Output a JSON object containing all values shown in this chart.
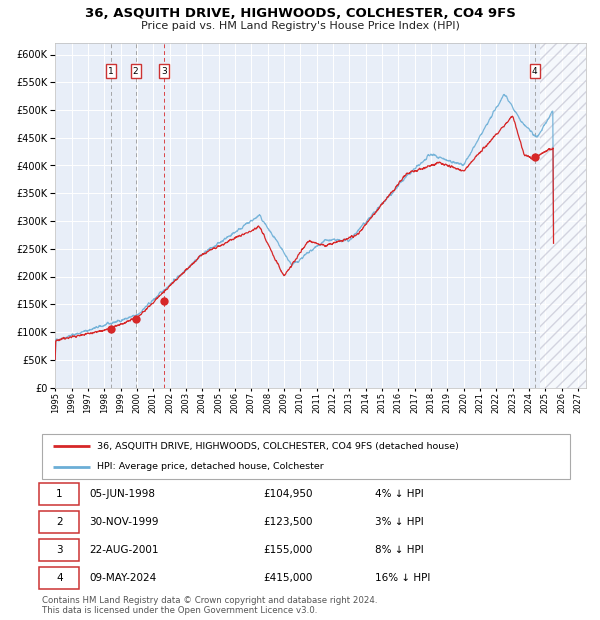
{
  "title": "36, ASQUITH DRIVE, HIGHWOODS, COLCHESTER, CO4 9FS",
  "subtitle": "Price paid vs. HM Land Registry's House Price Index (HPI)",
  "legend_entries": [
    "36, ASQUITH DRIVE, HIGHWOODS, COLCHESTER, CO4 9FS (detached house)",
    "HPI: Average price, detached house, Colchester"
  ],
  "table_rows": [
    {
      "num": "1",
      "date": "05-JUN-1998",
      "price": "£104,950",
      "hpi": "4% ↓ HPI"
    },
    {
      "num": "2",
      "date": "30-NOV-1999",
      "price": "£123,500",
      "hpi": "3% ↓ HPI"
    },
    {
      "num": "3",
      "date": "22-AUG-2001",
      "price": "£155,000",
      "hpi": "8% ↓ HPI"
    },
    {
      "num": "4",
      "date": "09-MAY-2024",
      "price": "£415,000",
      "hpi": "16% ↓ HPI"
    }
  ],
  "sale_dates_decimal": [
    1998.43,
    1999.92,
    2001.64,
    2024.35
  ],
  "sale_prices": [
    104950,
    123500,
    155000,
    415000
  ],
  "footer": "Contains HM Land Registry data © Crown copyright and database right 2024.\nThis data is licensed under the Open Government Licence v3.0.",
  "hpi_line_color": "#6baed6",
  "price_line_color": "#d62728",
  "marker_color": "#d62728",
  "bg_color": "#e8eef8",
  "ylim": [
    0,
    620000
  ],
  "yticks": [
    0,
    50000,
    100000,
    150000,
    200000,
    250000,
    300000,
    350000,
    400000,
    450000,
    500000,
    550000,
    600000
  ],
  "xlim_start": 1995.0,
  "xlim_end": 2027.5,
  "xtick_years": [
    1995,
    1996,
    1997,
    1998,
    1999,
    2000,
    2001,
    2002,
    2003,
    2004,
    2005,
    2006,
    2007,
    2008,
    2009,
    2010,
    2011,
    2012,
    2013,
    2014,
    2015,
    2016,
    2017,
    2018,
    2019,
    2020,
    2021,
    2022,
    2023,
    2024,
    2025,
    2026,
    2027
  ]
}
